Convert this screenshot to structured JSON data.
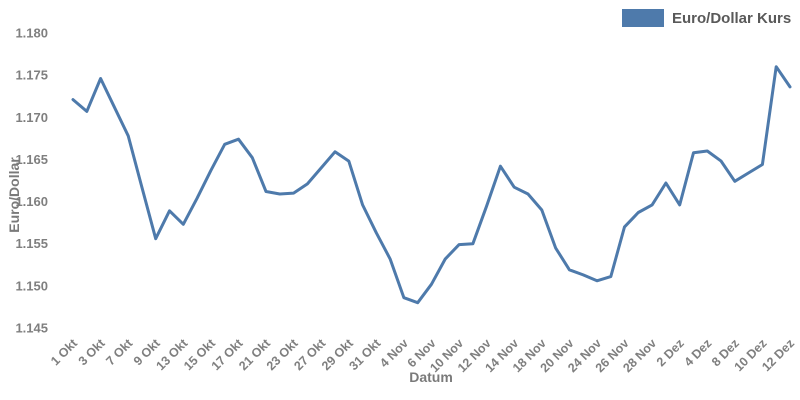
{
  "legend": {
    "swatch_color": "#4e7aab"
  },
  "chart_data": {
    "type": "line",
    "series_name": "Euro/Dollar Kurs",
    "xlabel": "Datum",
    "ylabel": "Euro/Dollar",
    "line_color": "#4e7aab",
    "grid": false,
    "legend_position": "top-right",
    "ylim": [
      1.145,
      1.18
    ],
    "ytick_labels": [
      "1.180",
      "1.175",
      "1.170",
      "1.165",
      "1.160",
      "1.155",
      "1.150",
      "1.145"
    ],
    "x_tick_labels": [
      "1 Okt",
      "3 Okt",
      "7 Okt",
      "9 Okt",
      "13 Okt",
      "15 Okt",
      "17 Okt",
      "21 Okt",
      "23 Okt",
      "27 Okt",
      "29 Okt",
      "31 Okt",
      "4 Nov",
      "6 Nov",
      "10 Nov",
      "12 Nov",
      "14 Nov",
      "18 Nov",
      "20 Nov",
      "24 Nov",
      "26 Nov",
      "28 Nov",
      "2 Dez",
      "4 Dez",
      "8 Dez",
      "10 Dez",
      "12 Dez"
    ],
    "x": [
      "1 Okt",
      "2 Okt",
      "3 Okt",
      "6 Okt",
      "7 Okt",
      "8 Okt",
      "9 Okt",
      "10 Okt",
      "13 Okt",
      "14 Okt",
      "15 Okt",
      "16 Okt",
      "17 Okt",
      "20 Okt",
      "21 Okt",
      "22 Okt",
      "23 Okt",
      "24 Okt",
      "27 Okt",
      "28 Okt",
      "29 Okt",
      "30 Okt",
      "31 Okt",
      "3 Nov",
      "4 Nov",
      "5 Nov",
      "6 Nov",
      "7 Nov",
      "10 Nov",
      "11 Nov",
      "12 Nov",
      "13 Nov",
      "14 Nov",
      "17 Nov",
      "18 Nov",
      "19 Nov",
      "20 Nov",
      "21 Nov",
      "24 Nov",
      "25 Nov",
      "26 Nov",
      "27 Nov",
      "28 Nov",
      "1 Dez",
      "2 Dez",
      "3 Dez",
      "4 Dez",
      "5 Dez",
      "8 Dez",
      "9 Dez",
      "10 Dez",
      "11 Dez",
      "12 Dez"
    ],
    "values": [
      1.1721,
      1.1707,
      1.1746,
      1.1712,
      1.1678,
      1.1617,
      1.1556,
      1.1589,
      1.1573,
      1.1604,
      1.1637,
      1.1668,
      1.1674,
      1.1652,
      1.1612,
      1.1609,
      1.161,
      1.1621,
      1.164,
      1.1659,
      1.1648,
      1.1596,
      1.1563,
      1.1532,
      1.1486,
      1.148,
      1.1502,
      1.1532,
      1.1549,
      1.155,
      1.1595,
      1.1642,
      1.1617,
      1.1609,
      1.159,
      1.1545,
      1.1519,
      1.1513,
      1.1506,
      1.1511,
      1.157,
      1.1587,
      1.1596,
      1.1622,
      1.1596,
      1.1658,
      1.166,
      1.1648,
      1.1624,
      1.1634,
      1.1644,
      1.176,
      1.1736
    ]
  }
}
